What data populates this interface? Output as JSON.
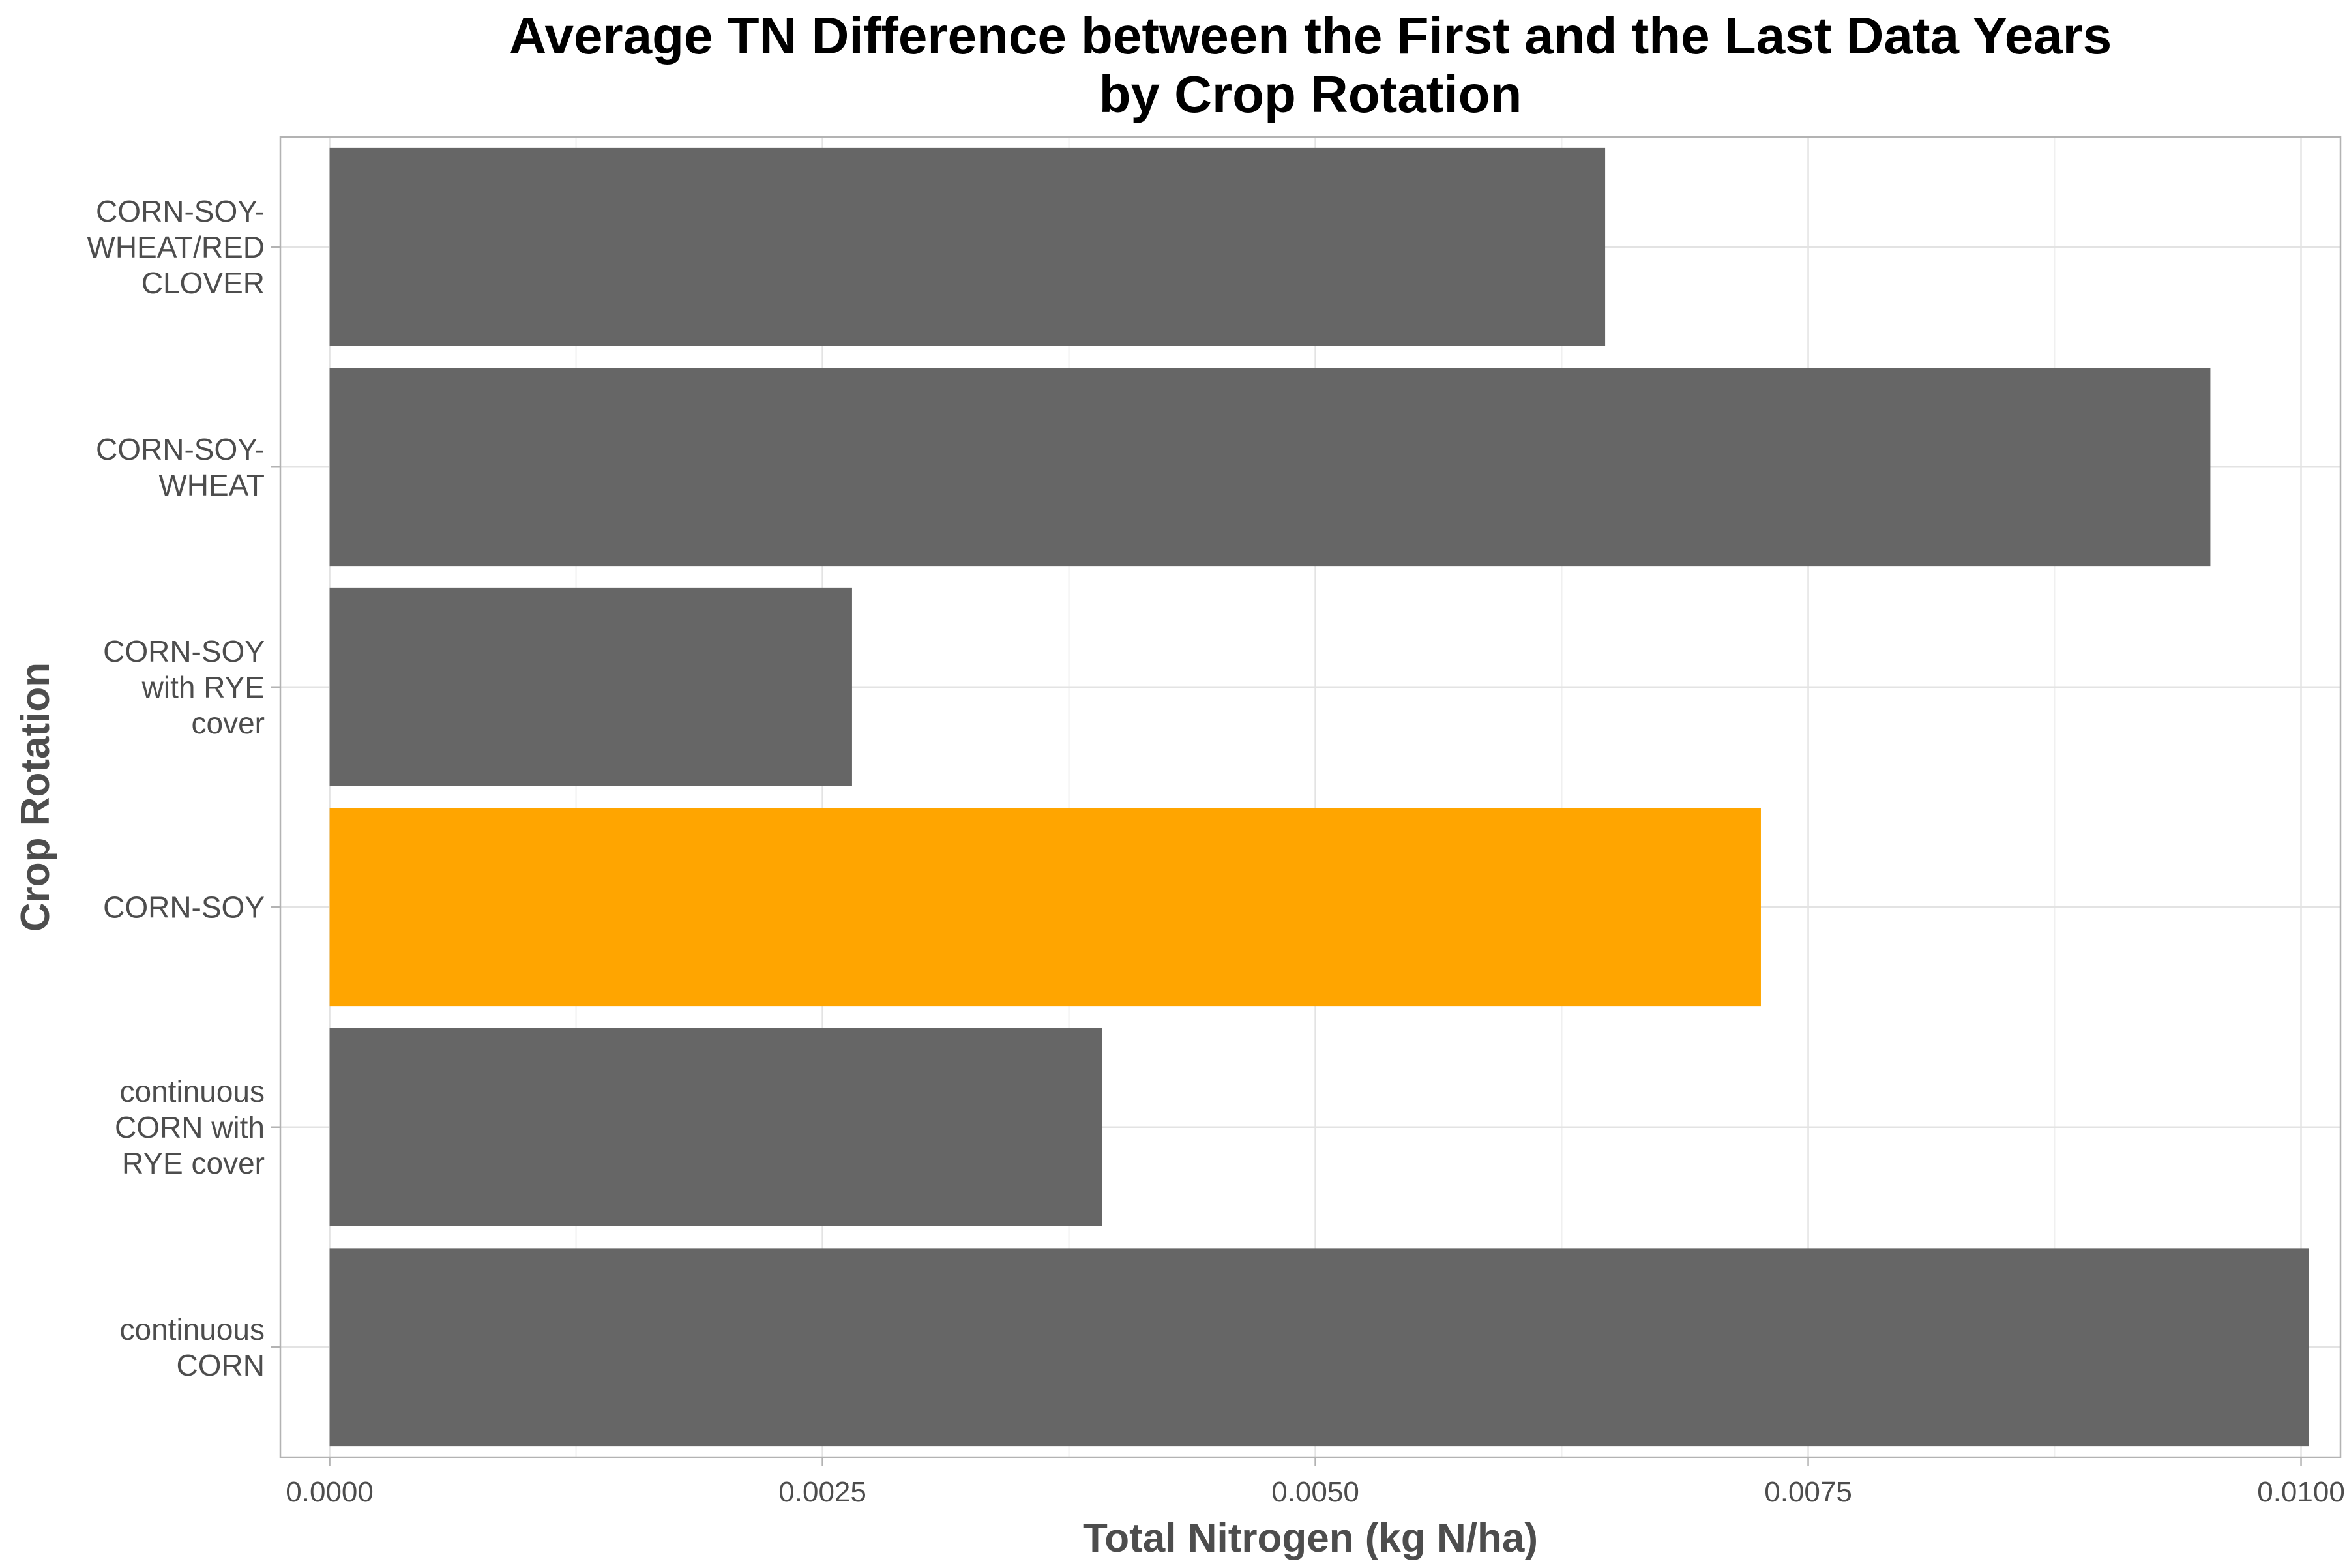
{
  "chart_data": {
    "type": "bar",
    "orientation": "horizontal",
    "title": "Average TN Difference between the First and the Last Data Years\nby Crop Rotation",
    "xlabel": "Total Nitrogen (kg N/ha)",
    "ylabel": "Crop Rotation",
    "xlim": [
      -0.00025,
      0.0102
    ],
    "x_ticks": [
      0.0,
      0.0025,
      0.005,
      0.0075,
      0.01
    ],
    "x_tick_labels": [
      "0.0000",
      "0.0025",
      "0.0050",
      "0.0075",
      "0.0100"
    ],
    "grid": true,
    "categories": [
      "continuous\nCORN",
      "continuous\nCORN with\nRYE cover",
      "CORN-SOY",
      "CORN-SOY\nwith RYE\ncover",
      "CORN-SOY-\nWHEAT",
      "CORN-SOY-\nWHEAT/RED\nCLOVER"
    ],
    "values": [
      0.01004,
      0.00392,
      0.00726,
      0.00265,
      0.00954,
      0.00647
    ],
    "bar_colors": [
      "#666666",
      "#666666",
      "#ffa500",
      "#666666",
      "#666666",
      "#666666"
    ],
    "highlight_color": "#ffa500",
    "default_color": "#666666"
  }
}
